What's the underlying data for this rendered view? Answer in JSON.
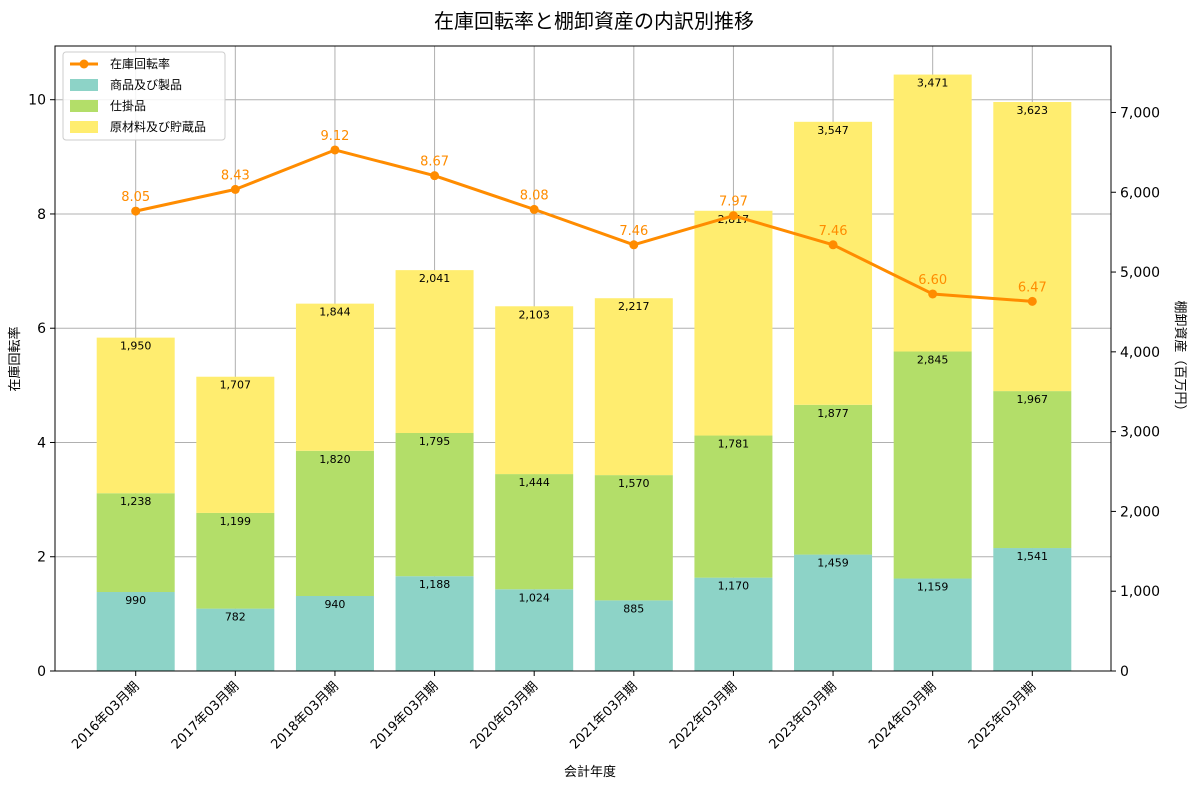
{
  "chart_data": {
    "type": "bar",
    "title": "在庫回転率と棚卸資産の内訳別推移",
    "xlabel": "会計年度",
    "ylabel_left": "在庫回転率",
    "ylabel_right": "棚卸資産（百万円）",
    "categories": [
      "2016年03月期",
      "2017年03月期",
      "2018年03月期",
      "2019年03月期",
      "2020年03月期",
      "2021年03月期",
      "2022年03月期",
      "2023年03月期",
      "2024年03月期",
      "2025年03月期"
    ],
    "stacked_series": [
      {
        "name": "商品及び製品",
        "color": "#8dd3c7",
        "values": [
          990,
          782,
          940,
          1188,
          1024,
          885,
          1170,
          1459,
          1159,
          1541
        ]
      },
      {
        "name": "仕掛品",
        "color": "#b3de69",
        "values": [
          1238,
          1199,
          1820,
          1795,
          1444,
          1570,
          1781,
          1877,
          2845,
          1967
        ]
      },
      {
        "name": "原材料及び貯蔵品",
        "color": "#ffed6f",
        "values": [
          1950,
          1707,
          1844,
          2041,
          2103,
          2217,
          2817,
          3547,
          3471,
          3623
        ]
      }
    ],
    "line_series": {
      "name": "在庫回転率",
      "color": "#ff8c00",
      "values": [
        8.05,
        8.43,
        9.12,
        8.67,
        8.08,
        7.46,
        7.97,
        7.46,
        6.6,
        6.47
      ]
    },
    "ylim_left": [
      0,
      10.94
    ],
    "ylim_right": [
      0,
      7833
    ],
    "left_ticks": [
      "0",
      "2",
      "4",
      "6",
      "8",
      "10"
    ],
    "left_tick_values": [
      0,
      2,
      4,
      6,
      8,
      10
    ],
    "right_ticks": [
      "0",
      "1,000",
      "2,000",
      "3,000",
      "4,000",
      "5,000",
      "6,000",
      "7,000"
    ],
    "right_tick_values": [
      0,
      1000,
      2000,
      3000,
      4000,
      5000,
      6000,
      7000
    ],
    "grid": true,
    "legend_position": "upper-left"
  }
}
